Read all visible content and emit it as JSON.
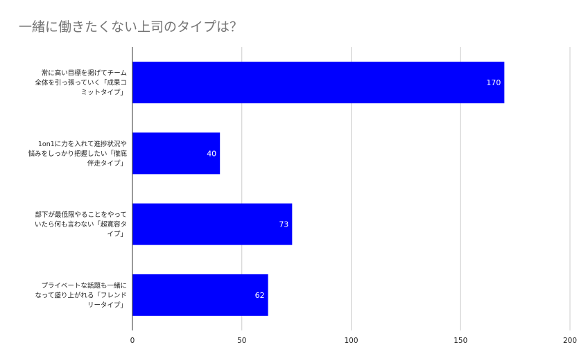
{
  "chart_data": {
    "type": "bar",
    "orientation": "horizontal",
    "title": "一緒に働きたくない上司のタイプは？",
    "xlabel": "",
    "ylabel": "",
    "xlim": [
      0,
      200
    ],
    "xticks": [
      0,
      50,
      100,
      150,
      200
    ],
    "grid": true,
    "legend": "none",
    "bar_color": "#0000ff",
    "categories": [
      [
        "常に高い目標を掲げてチーム",
        "全体を引っ張っていく「成果コ",
        "ミットタイプ」"
      ],
      [
        "1on1に力を入れて進捗状況や",
        "悩みをしっかり把握したい「徹底",
        "伴走タイプ」"
      ],
      [
        "部下が最低限やることをやって",
        "いたら何も言わない「超寛容タ",
        "イプ」"
      ],
      [
        "プライベートな話題も一緒に",
        "なって盛り上がれる「フレンド",
        "リータイプ」"
      ]
    ],
    "values": [
      170,
      40,
      73,
      62
    ]
  }
}
